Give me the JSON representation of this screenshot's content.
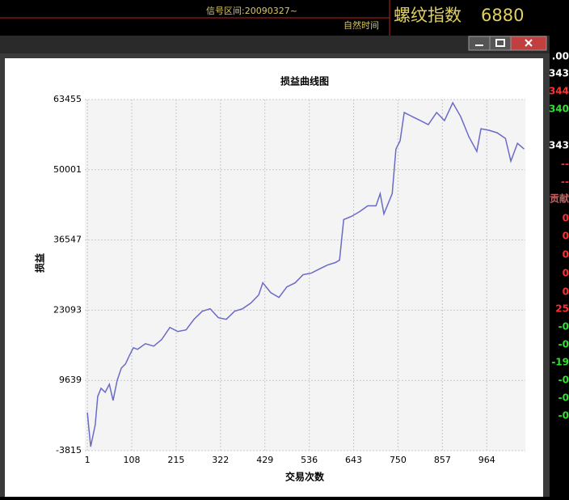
{
  "header": {
    "signal_range": "信号区间:20090327~",
    "natural_time": "自然时间",
    "instrument": "螺纹指数",
    "price": "6880"
  },
  "side_column": [
    {
      "text": ".00",
      "color": "#ffffff"
    },
    {
      "text": "343",
      "color": "#ffffff"
    },
    {
      "text": "344",
      "color": "#ff3030"
    },
    {
      "text": "340",
      "color": "#30e030"
    },
    {
      "text": "343",
      "color": "#ffffff"
    },
    {
      "text": "--",
      "color": "#ff3030"
    },
    {
      "text": "--",
      "color": "#ff3030"
    },
    {
      "text": "贡献",
      "color": "#c06060"
    },
    {
      "text": "0",
      "color": "#ff3030"
    },
    {
      "text": "0",
      "color": "#ff3030"
    },
    {
      "text": "0",
      "color": "#ff3030"
    },
    {
      "text": "0",
      "color": "#ff3030"
    },
    {
      "text": "0",
      "color": "#ff3030"
    },
    {
      "text": "25",
      "color": "#ff3030"
    },
    {
      "text": "-0",
      "color": "#30e030"
    },
    {
      "text": "-0",
      "color": "#30e030"
    },
    {
      "text": "-19",
      "color": "#30e030"
    },
    {
      "text": "-0",
      "color": "#30e030"
    },
    {
      "text": "-0",
      "color": "#30e030"
    },
    {
      "text": "-0",
      "color": "#30e030"
    }
  ],
  "chart_data": {
    "type": "line",
    "title": "损益曲线图",
    "x_label": "交易次数",
    "y_label": "损益",
    "color": "#6a6ac8",
    "grid": true,
    "x": [
      1,
      9,
      20,
      26,
      34,
      44,
      54,
      63,
      73,
      83,
      93,
      102,
      112,
      122,
      141,
      161,
      180,
      200,
      219,
      239,
      258,
      278,
      297,
      317,
      336,
      356,
      375,
      395,
      414,
      424,
      443,
      463,
      482,
      502,
      521,
      541,
      560,
      580,
      599,
      609,
      619,
      638,
      658,
      677,
      697,
      707,
      716,
      736,
      745,
      755,
      765,
      784,
      804,
      823,
      843,
      862,
      882,
      901,
      921,
      940,
      950,
      970,
      989,
      1009,
      1022,
      1038,
      1054
    ],
    "values": [
      3471,
      -3056,
      1140,
      6579,
      8133,
      7356,
      8910,
      5802,
      9687,
      12018,
      12795,
      14349,
      15903,
      15592,
      16680,
      16213,
      17457,
      19788,
      19011,
      19321,
      21342,
      22896,
      23362,
      21652,
      21342,
      22896,
      23362,
      24450,
      26004,
      28335,
      26470,
      25537,
      27558,
      28335,
      29889,
      30199,
      30976,
      31753,
      32220,
      32686,
      40456,
      41077,
      42010,
      43098,
      43098,
      45429,
      41544,
      45429,
      53976,
      55530,
      60969,
      60192,
      59415,
      58638,
      60969,
      59415,
      62833,
      60192,
      56307,
      53509,
      57861,
      57550,
      57084,
      55996,
      51645,
      55063,
      53976
    ],
    "xlim": [
      -5,
      1057
    ],
    "xticks": [
      1,
      108,
      215,
      322,
      429,
      536,
      643,
      750,
      857,
      964
    ],
    "ylim": [
      -3815,
      63455
    ],
    "yticks": [
      -3815,
      9639,
      23093,
      36547,
      50001,
      63455
    ]
  }
}
